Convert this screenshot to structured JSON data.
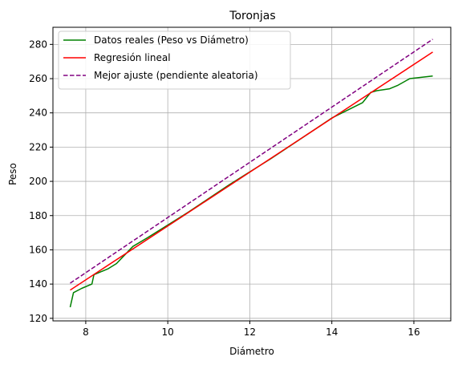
{
  "chart_data": {
    "type": "line",
    "title": "Toronjas",
    "xlabel": "Diámetro",
    "ylabel": "Peso",
    "xlim": [
      7.2,
      16.9
    ],
    "ylim": [
      118.5,
      290
    ],
    "xticks": [
      8,
      10,
      12,
      14,
      16
    ],
    "yticks": [
      120,
      140,
      160,
      180,
      200,
      220,
      240,
      260,
      280
    ],
    "grid": true,
    "legend_position": "top-left",
    "series": [
      {
        "name": "Datos reales (Peso vs Diámetro)",
        "color": "#008000",
        "style": "solid",
        "x": [
          7.62,
          7.7,
          7.9,
          8.15,
          8.2,
          8.35,
          8.55,
          8.75,
          8.95,
          9.15,
          9.5,
          10.0,
          10.5,
          11.0,
          11.5,
          12.0,
          12.5,
          13.0,
          13.5,
          14.0,
          14.25,
          14.5,
          14.75,
          14.95,
          15.1,
          15.4,
          15.6,
          15.9,
          16.46
        ],
        "y": [
          126.5,
          135,
          137.5,
          140,
          145.5,
          147,
          149,
          152,
          157,
          162,
          167,
          174.5,
          182,
          190,
          198,
          205.5,
          213,
          221,
          229,
          237,
          240,
          243,
          246,
          252,
          253,
          254,
          256,
          260,
          261.5
        ]
      },
      {
        "name": "Regresión lineal",
        "color": "#ff0000",
        "style": "solid",
        "x": [
          7.62,
          16.46
        ],
        "y": [
          136.5,
          275.5
        ]
      },
      {
        "name": "Mejor ajuste (pendiente aleatoria)",
        "color": "#800080",
        "style": "dashed",
        "x": [
          7.62,
          16.46
        ],
        "y": [
          140.5,
          283
        ]
      }
    ]
  }
}
